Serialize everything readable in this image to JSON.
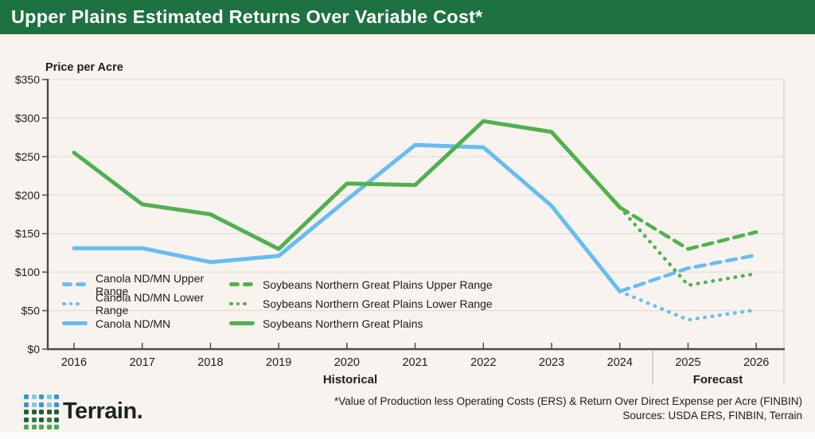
{
  "header": {
    "title": "Upper Plains Estimated Returns Over Variable Cost*"
  },
  "chart_data": {
    "type": "line",
    "title": "Upper Plains Estimated Returns Over Variable Cost*",
    "y_axis_title": "Price per Acre",
    "ylim": [
      0,
      350
    ],
    "y_tick_step": 50,
    "y_tick_labels": [
      "$350",
      "$300",
      "$250",
      "$200",
      "$150",
      "$100",
      "$50",
      "$0"
    ],
    "x_tick_labels": [
      "2016",
      "2017",
      "2018",
      "2019",
      "2020",
      "2021",
      "2022",
      "2023",
      "2024",
      "2025",
      "2026"
    ],
    "grid": "horizontal",
    "legend_position": "inside-bottom-left",
    "sections": [
      {
        "label": "Historical",
        "from": 2016,
        "to": 2024
      },
      {
        "label": "Forecast",
        "from": 2025,
        "to": 2026
      }
    ],
    "series": [
      {
        "name": "Canola ND/MN",
        "style": "solid",
        "color_key": "canola",
        "years": [
          2016,
          2017,
          2018,
          2019,
          2020,
          2021,
          2022,
          2023,
          2024
        ],
        "values": [
          131,
          131,
          113,
          121,
          194,
          265,
          262,
          186,
          75
        ]
      },
      {
        "name": "Canola ND/MN Upper Range",
        "style": "dashed",
        "color_key": "canola",
        "years": [
          2024,
          2025,
          2026
        ],
        "values": [
          75,
          105,
          122
        ]
      },
      {
        "name": "Canola ND/MN Lower Range",
        "style": "dotted",
        "color_key": "canola",
        "years": [
          2024,
          2025,
          2026
        ],
        "values": [
          75,
          38,
          51
        ]
      },
      {
        "name": "Soybeans Northern Great Plains",
        "style": "solid",
        "color_key": "soybeans",
        "years": [
          2016,
          2017,
          2018,
          2019,
          2020,
          2021,
          2022,
          2023,
          2024
        ],
        "values": [
          255,
          188,
          175,
          130,
          215,
          213,
          296,
          282,
          184
        ]
      },
      {
        "name": "Soybeans Northern Great Plains Upper Range",
        "style": "dashed",
        "color_key": "soybeans",
        "years": [
          2024,
          2025,
          2026
        ],
        "values": [
          184,
          130,
          152
        ]
      },
      {
        "name": "Soybeans Northern Great Plains Lower Range",
        "style": "dotted",
        "color_key": "soybeans",
        "years": [
          2024,
          2025,
          2026
        ],
        "values": [
          184,
          83,
          98
        ]
      }
    ]
  },
  "legend": {
    "columns": [
      [
        {
          "label": "Canola ND/MN Upper Range",
          "style": "dashed",
          "color_key": "canola"
        },
        {
          "label": "Canola ND/MN Lower Range",
          "style": "dotted",
          "color_key": "canola"
        },
        {
          "label": "Canola ND/MN",
          "style": "solid",
          "color_key": "canola"
        }
      ],
      [
        {
          "label": "Soybeans Northern Great Plains Upper Range",
          "style": "dashed",
          "color_key": "soybeans"
        },
        {
          "label": "Soybeans Northern Great Plains Lower Range",
          "style": "dotted",
          "color_key": "soybeans"
        },
        {
          "label": "Soybeans Northern Great Plains",
          "style": "solid",
          "color_key": "soybeans"
        }
      ]
    ]
  },
  "footer": {
    "brand": "Terrain.",
    "footnote_line1": "*Value of Production less Operating Costs (ERS) & Return Over Direct Expense per Acre (FINBIN)",
    "footnote_line2": "Sources: USDA ERS, FINBIN, Terrain"
  },
  "logo": {
    "name": "terrain-dot-grid-logo",
    "rows": [
      [
        "#2e9ad6",
        "#7cc7ec",
        "#2e9ad6",
        "#7cc7ec",
        "#2e9ad6"
      ],
      [
        "#2e9ad6",
        "#7cc7ec",
        "#2e9ad6",
        "#7cc7ec",
        "#2e9ad6"
      ],
      [
        "#20603a",
        "#20603a",
        "#20603a",
        "#20603a",
        "#20603a"
      ],
      [
        "#20603a",
        "#357a48",
        "#20603a",
        "#357a48",
        "#20603a"
      ],
      [
        "#49aa50",
        "#49aa50",
        "#49aa50",
        "#49aa50",
        "#49aa50"
      ]
    ]
  },
  "colors": {
    "header_bg": "#1e7140",
    "header_text": "#ffffff",
    "background": "#f8f3ee",
    "canola": "#67bdf1",
    "soybeans": "#50b14e",
    "gridline": "#e3ded7",
    "axis": "#4e4d4b",
    "separator": "#c9c4be",
    "text": "#1d1d1b"
  }
}
